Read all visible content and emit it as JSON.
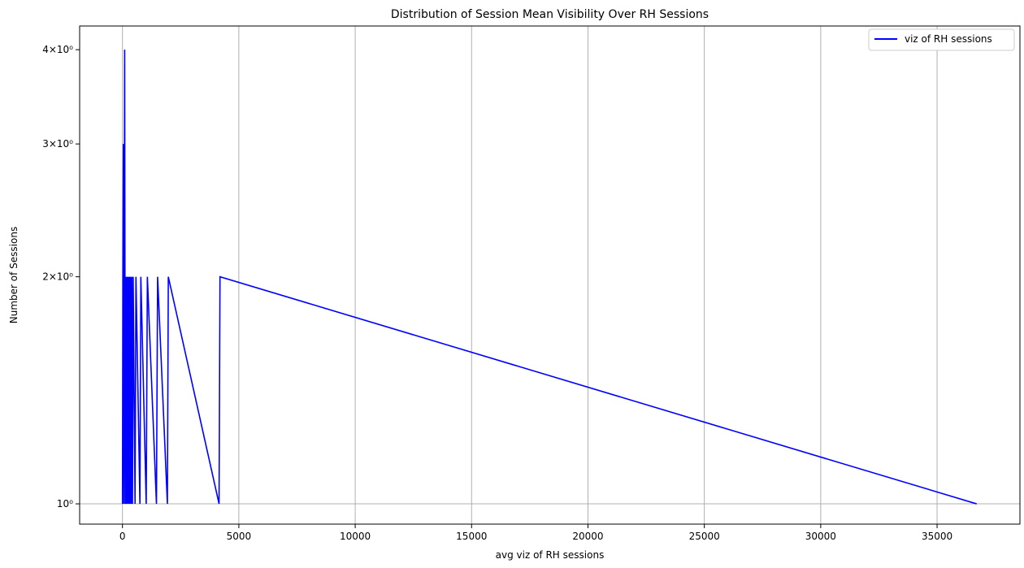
{
  "chart_data": {
    "type": "line",
    "title": "Distribution of Session Mean Visibility Over RH Sessions",
    "xlabel": "avg viz of RH sessions",
    "ylabel": "Number of Sessions",
    "xlim": [
      -1840,
      38560
    ],
    "ylim": [
      0.94,
      4.3
    ],
    "yscale": "log",
    "grid": true,
    "legend_position": "top-right",
    "x_ticks": [
      0,
      5000,
      10000,
      15000,
      20000,
      25000,
      30000,
      35000
    ],
    "x_tick_labels": [
      "0",
      "5000",
      "10000",
      "15000",
      "20000",
      "25000",
      "30000",
      "35000"
    ],
    "y_ticks": [
      1,
      2,
      3,
      4
    ],
    "y_tick_labels": [
      "10⁰",
      "2×10⁰",
      "3×10⁰",
      "4×10⁰"
    ],
    "series": [
      {
        "name": "viz of RH sessions",
        "color": "#0000ff",
        "x": [
          0,
          20,
          40,
          60,
          75,
          95,
          120,
          140,
          160,
          185,
          200,
          225,
          250,
          270,
          290,
          310,
          330,
          350,
          375,
          400,
          430,
          460,
          540,
          580,
          750,
          790,
          1020,
          1070,
          1460,
          1510,
          1930,
          1970,
          4150,
          4190,
          36700
        ],
        "y": [
          1,
          2,
          3,
          1,
          2,
          4,
          1,
          2,
          1,
          2,
          1,
          2,
          1,
          2,
          1,
          2,
          1,
          2,
          1,
          2,
          1,
          2,
          1,
          2,
          1,
          2,
          1,
          2,
          1,
          2,
          1,
          2,
          1,
          2,
          1
        ]
      }
    ]
  }
}
